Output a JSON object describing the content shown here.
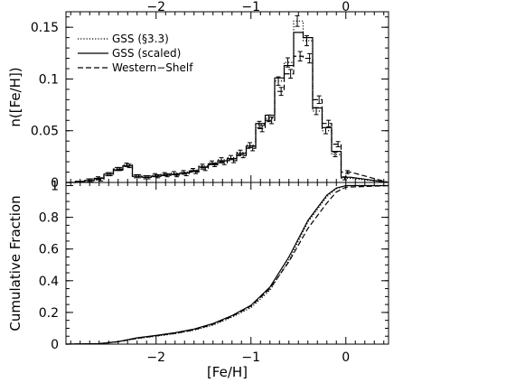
{
  "chart_data": [
    {
      "type": "line",
      "panel": "top",
      "ylabel": "n([Fe/H])",
      "xlim": [
        -2.95,
        0.45
      ],
      "ylim": [
        0,
        0.165
      ],
      "x_ticks": [
        -2,
        -1,
        0
      ],
      "x_tick_labels": [
        "−2",
        "−1",
        "0"
      ],
      "y_ticks": [
        0,
        0.05,
        0.1,
        0.15
      ],
      "y_tick_labels": [
        "0",
        "0.05",
        "0.1",
        "0.15"
      ],
      "legend_position": "top-left",
      "series": [
        {
          "name": "GSS (§3.3)",
          "style": "dotted",
          "bins": [
            -2.9,
            -2.8,
            -2.7,
            -2.6,
            -2.5,
            -2.4,
            -2.3,
            -2.2,
            -2.1,
            -2.0,
            -1.9,
            -1.8,
            -1.7,
            -1.6,
            -1.5,
            -1.4,
            -1.3,
            -1.2,
            -1.1,
            -1.0,
            -0.9,
            -0.8,
            -0.7,
            -0.6,
            -0.5,
            -0.4,
            -0.3,
            -0.2,
            -0.1,
            0.0
          ],
          "values": [
            0.0,
            0.001,
            0.002,
            0.004,
            0.008,
            0.013,
            0.017,
            0.006,
            0.005,
            0.007,
            0.008,
            0.009,
            0.01,
            0.012,
            0.016,
            0.019,
            0.022,
            0.024,
            0.029,
            0.036,
            0.056,
            0.062,
            0.098,
            0.116,
            0.156,
            0.137,
            0.069,
            0.05,
            0.027,
            0.004
          ]
        },
        {
          "name": "GSS (scaled)",
          "style": "solid",
          "bins": [
            -2.9,
            -2.8,
            -2.7,
            -2.6,
            -2.5,
            -2.4,
            -2.3,
            -2.2,
            -2.1,
            -2.0,
            -1.9,
            -1.8,
            -1.7,
            -1.6,
            -1.5,
            -1.4,
            -1.3,
            -1.2,
            -1.1,
            -1.0,
            -0.9,
            -0.8,
            -0.7,
            -0.6,
            -0.5,
            -0.4,
            -0.3,
            -0.2,
            -0.1,
            0.0
          ],
          "values": [
            0.0,
            0.001,
            0.002,
            0.004,
            0.008,
            0.012,
            0.016,
            0.006,
            0.005,
            0.006,
            0.007,
            0.008,
            0.009,
            0.011,
            0.015,
            0.018,
            0.021,
            0.023,
            0.028,
            0.035,
            0.057,
            0.065,
            0.101,
            0.113,
            0.145,
            0.14,
            0.072,
            0.053,
            0.03,
            0.005
          ]
        },
        {
          "name": "Western−Shelf",
          "style": "dashed",
          "bins": [
            -2.9,
            -2.8,
            -2.7,
            -2.6,
            -2.5,
            -2.4,
            -2.3,
            -2.2,
            -2.1,
            -2.0,
            -1.9,
            -1.8,
            -1.7,
            -1.6,
            -1.5,
            -1.4,
            -1.3,
            -1.2,
            -1.1,
            -1.0,
            -0.9,
            -0.8,
            -0.7,
            -0.6,
            -0.5,
            -0.4,
            -0.3,
            -0.2,
            -0.1,
            0.0
          ],
          "values": [
            0.0,
            0.001,
            0.002,
            0.003,
            0.008,
            0.013,
            0.016,
            0.006,
            0.005,
            0.006,
            0.007,
            0.007,
            0.008,
            0.01,
            0.013,
            0.017,
            0.019,
            0.021,
            0.026,
            0.033,
            0.052,
            0.06,
            0.088,
            0.105,
            0.122,
            0.12,
            0.08,
            0.057,
            0.037,
            0.01
          ]
        }
      ]
    },
    {
      "type": "line",
      "panel": "bottom",
      "xlabel": "[Fe/H]",
      "ylabel": "Cumulative Fraction",
      "xlim": [
        -2.95,
        0.45
      ],
      "ylim": [
        0,
        1.02
      ],
      "x_ticks": [
        -2,
        -1,
        0
      ],
      "x_tick_labels": [
        "−2",
        "−1",
        "0"
      ],
      "y_ticks": [
        0,
        0.2,
        0.4,
        0.6,
        0.8,
        1
      ],
      "y_tick_labels": [
        "0",
        "0.2",
        "0.4",
        "0.6",
        "0.8",
        "1"
      ],
      "series": [
        {
          "name": "GSS (§3.3)",
          "style": "dotted",
          "x": [
            -2.95,
            -2.6,
            -2.4,
            -2.2,
            -2.0,
            -1.8,
            -1.6,
            -1.4,
            -1.2,
            -1.0,
            -0.8,
            -0.6,
            -0.4,
            -0.2,
            -0.1,
            0.0,
            0.45
          ],
          "y": [
            0.0,
            0.003,
            0.015,
            0.035,
            0.05,
            0.066,
            0.088,
            0.12,
            0.17,
            0.23,
            0.34,
            0.53,
            0.77,
            0.93,
            0.98,
            1.0,
            1.0
          ]
        },
        {
          "name": "GSS (scaled)",
          "style": "solid",
          "x": [
            -2.95,
            -2.6,
            -2.4,
            -2.2,
            -2.0,
            -1.8,
            -1.6,
            -1.4,
            -1.2,
            -1.0,
            -0.8,
            -0.6,
            -0.4,
            -0.2,
            -0.1,
            0.0,
            0.45
          ],
          "y": [
            0.0,
            0.003,
            0.016,
            0.04,
            0.055,
            0.072,
            0.095,
            0.13,
            0.18,
            0.245,
            0.36,
            0.55,
            0.78,
            0.94,
            0.985,
            1.0,
            1.0
          ]
        },
        {
          "name": "Western−Shelf",
          "style": "dashed",
          "x": [
            -2.95,
            -2.6,
            -2.4,
            -2.2,
            -2.0,
            -1.8,
            -1.6,
            -1.4,
            -1.2,
            -1.0,
            -0.8,
            -0.6,
            -0.4,
            -0.2,
            -0.1,
            0.0,
            0.45
          ],
          "y": [
            0.0,
            0.003,
            0.015,
            0.037,
            0.052,
            0.068,
            0.09,
            0.125,
            0.175,
            0.24,
            0.35,
            0.52,
            0.73,
            0.89,
            0.96,
            0.99,
            1.0
          ]
        }
      ]
    }
  ]
}
